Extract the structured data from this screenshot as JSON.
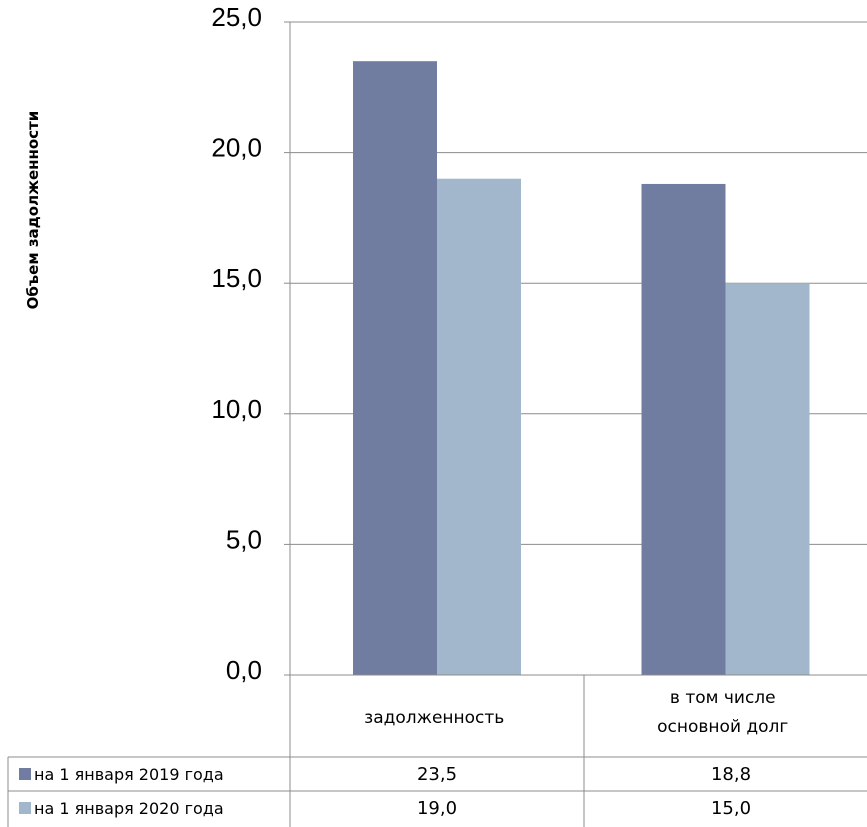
{
  "chart_data": {
    "type": "bar",
    "title": "",
    "xlabel": "",
    "ylabel": "Объем задолженности",
    "ylim": [
      0,
      25
    ],
    "yticks": [
      "0,0",
      "5,0",
      "10,0",
      "15,0",
      "20,0",
      "25,0"
    ],
    "grid": true,
    "categories": [
      "задолженность",
      "в том числе основной долг"
    ],
    "category_labels": [
      [
        "задолженность"
      ],
      [
        "в том числе",
        "основной долг"
      ]
    ],
    "series": [
      {
        "name": "на 1 января 2019 года",
        "color": "#717CA1",
        "values": [
          23.5,
          18.8
        ],
        "labels": [
          "23,5",
          "18,8"
        ]
      },
      {
        "name": "на 1 января 2020 года",
        "color": "#A2B6CC",
        "values": [
          19.0,
          15.0
        ],
        "labels": [
          "19,0",
          "15,0"
        ]
      }
    ]
  }
}
